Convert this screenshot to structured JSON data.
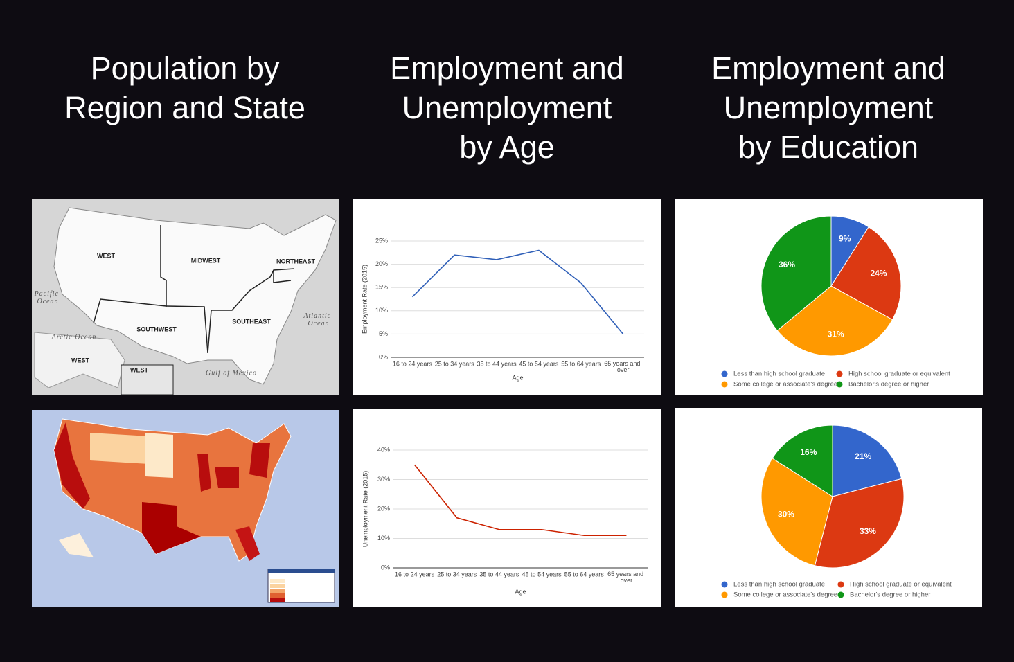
{
  "headings": [
    [
      "Population by",
      "Region and State"
    ],
    [
      "Employment and",
      "Unemployment",
      "by Age"
    ],
    [
      "Employment and",
      "Unemployment",
      "by Education"
    ]
  ],
  "maps": [
    {
      "labels": [
        "WEST",
        "MIDWEST",
        "NORTHEAST",
        "SOUTHWEST",
        "SOUTHEAST",
        "WEST",
        "WEST"
      ],
      "oceans": [
        "Pacific Ocean",
        "Atlantic Ocean",
        "Gulf of Mexico",
        "Arctic Ocean"
      ]
    }
  ],
  "chart_data": [
    {
      "type": "line",
      "categories": [
        "16 to 24 years",
        "25 to 34 years",
        "35 to 44 years",
        "45 to 54 years",
        "55 to 64 years",
        "65 years and over"
      ],
      "values": [
        13,
        22,
        21,
        23,
        16,
        5
      ],
      "color": "#2f5fb8",
      "ylim": [
        0,
        25
      ],
      "yticks": [
        {
          "value": 0,
          "label": "0%"
        },
        {
          "value": 5,
          "label": "5%"
        },
        {
          "value": 10,
          "label": "10%"
        },
        {
          "value": 15,
          "label": "15%"
        },
        {
          "value": 20,
          "label": "20%"
        },
        {
          "value": 25,
          "label": "25%"
        }
      ],
      "y_label": "Employment Rate (2015)",
      "x_label": "Age",
      "grid": true
    },
    {
      "type": "line",
      "categories": [
        "16 to 24 years",
        "25 to 34 years",
        "35 to 44 years",
        "45 to 54 years",
        "55 to 64 years",
        "65 years and over"
      ],
      "values": [
        35,
        17,
        13,
        13,
        11,
        11
      ],
      "color": "#cc2200",
      "ylim": [
        0,
        40
      ],
      "yticks": [
        {
          "value": 0,
          "label": "0%"
        },
        {
          "value": 10,
          "label": "10%"
        },
        {
          "value": 20,
          "label": "20%"
        },
        {
          "value": 30,
          "label": "30%"
        },
        {
          "value": 40,
          "label": "40%"
        }
      ],
      "y_label": "Unemployment Rate (2015)",
      "x_label": "Age",
      "grid": true
    },
    {
      "type": "pie",
      "categories": [
        "Less than high school graduate",
        "High school graduate or equivalent",
        "Some college or associate's degree",
        "Bachelor's degree or higher"
      ],
      "values": [
        9,
        24,
        31,
        36
      ],
      "value_labels": [
        "9%",
        "24%",
        "31%",
        "36%"
      ],
      "colors": [
        "#3366cc",
        "#dc3912",
        "#ff9900",
        "#109618"
      ]
    },
    {
      "type": "pie",
      "categories": [
        "Less than high school graduate",
        "High school graduate or equivalent",
        "Some college or associate's degree",
        "Bachelor's degree or higher"
      ],
      "values": [
        21,
        33,
        30,
        16
      ],
      "value_labels": [
        "21%",
        "33%",
        "30%",
        "16%"
      ],
      "colors": [
        "#3366cc",
        "#dc3912",
        "#ff9900",
        "#109618"
      ]
    }
  ]
}
